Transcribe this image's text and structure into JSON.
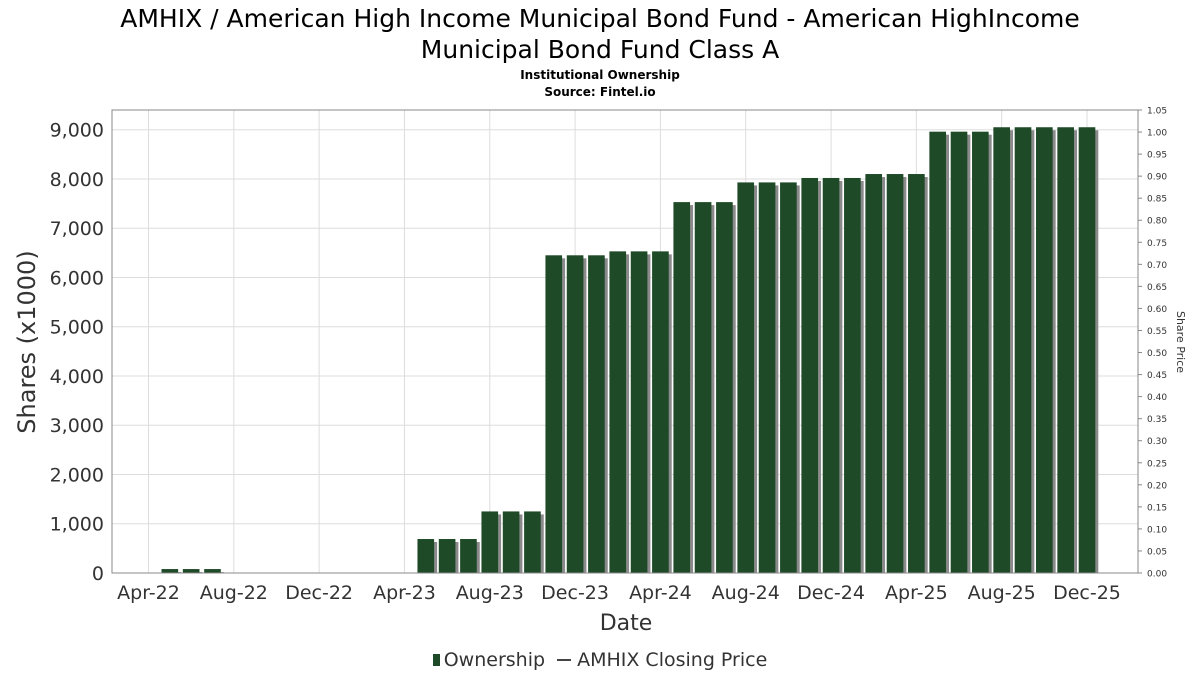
{
  "title_line1": "AMHIX / American High Income Municipal Bond Fund - American HighIncome",
  "title_line2": "Municipal Bond Fund Class A",
  "subtitle": "Institutional Ownership",
  "source": "Source: Fintel.io",
  "legend": {
    "ownership": "Ownership",
    "price": "AMHIX Closing Price"
  },
  "colors": {
    "bar": "#1e4a28",
    "bar_shadow": "#8a8a8a",
    "grid": "#dddddd",
    "frame": "#888888"
  },
  "chart_data": {
    "type": "bar",
    "xlabel": "Date",
    "ylabel": "Shares (x1000)",
    "y2label": "Share Price",
    "ylim": [
      0,
      9400
    ],
    "y2lim": [
      0,
      1.05
    ],
    "yticks": [
      "0",
      "1,000",
      "2,000",
      "3,000",
      "4,000",
      "5,000",
      "6,000",
      "7,000",
      "8,000",
      "9,000"
    ],
    "y2ticks": [
      "0.00",
      "0.05",
      "0.10",
      "0.15",
      "0.20",
      "0.25",
      "0.30",
      "0.35",
      "0.40",
      "0.45",
      "0.50",
      "0.55",
      "0.60",
      "0.65",
      "0.70",
      "0.75",
      "0.80",
      "0.85",
      "0.90",
      "0.95",
      "1.00",
      "1.05"
    ],
    "xticks": [
      "Apr-22",
      "Aug-22",
      "Dec-22",
      "Apr-23",
      "Aug-23",
      "Dec-23",
      "Apr-24",
      "Aug-24",
      "Dec-24",
      "Apr-25",
      "Aug-25",
      "Dec-25"
    ],
    "grid": true,
    "legend_position": "bottom",
    "series": [
      {
        "name": "Ownership",
        "points": [
          {
            "x": "2022-05",
            "y": 80
          },
          {
            "x": "2022-06",
            "y": 80
          },
          {
            "x": "2022-07",
            "y": 80
          },
          {
            "x": "2023-05",
            "y": 690
          },
          {
            "x": "2023-06",
            "y": 690
          },
          {
            "x": "2023-07",
            "y": 690
          },
          {
            "x": "2023-08",
            "y": 1250
          },
          {
            "x": "2023-09",
            "y": 1250
          },
          {
            "x": "2023-10",
            "y": 1250
          },
          {
            "x": "2023-11",
            "y": 6450
          },
          {
            "x": "2023-12",
            "y": 6450
          },
          {
            "x": "2024-01",
            "y": 6450
          },
          {
            "x": "2024-02",
            "y": 6530
          },
          {
            "x": "2024-03",
            "y": 6530
          },
          {
            "x": "2024-04",
            "y": 6530
          },
          {
            "x": "2024-05",
            "y": 7530
          },
          {
            "x": "2024-06",
            "y": 7530
          },
          {
            "x": "2024-07",
            "y": 7530
          },
          {
            "x": "2024-08",
            "y": 7930
          },
          {
            "x": "2024-09",
            "y": 7930
          },
          {
            "x": "2024-10",
            "y": 7930
          },
          {
            "x": "2024-11",
            "y": 8020
          },
          {
            "x": "2024-12",
            "y": 8020
          },
          {
            "x": "2025-01",
            "y": 8020
          },
          {
            "x": "2025-02",
            "y": 8100
          },
          {
            "x": "2025-03",
            "y": 8100
          },
          {
            "x": "2025-04",
            "y": 8100
          },
          {
            "x": "2025-05",
            "y": 8960
          },
          {
            "x": "2025-06",
            "y": 8960
          },
          {
            "x": "2025-07",
            "y": 8960
          },
          {
            "x": "2025-08",
            "y": 9050
          },
          {
            "x": "2025-09",
            "y": 9050
          },
          {
            "x": "2025-10",
            "y": 9050
          },
          {
            "x": "2025-11",
            "y": 9050
          },
          {
            "x": "2025-12",
            "y": 9050
          }
        ]
      },
      {
        "name": "AMHIX Closing Price",
        "points": []
      }
    ]
  }
}
